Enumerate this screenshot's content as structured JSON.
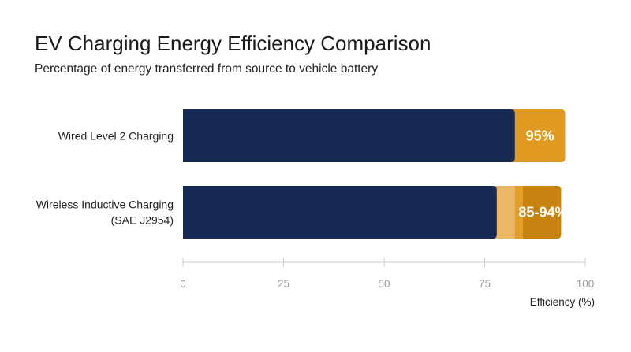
{
  "chart_data": {
    "type": "bar",
    "orientation": "horizontal",
    "title": "EV Charging Energy Efficiency Comparison",
    "subtitle": "Percentage of energy transferred from source to vehicle battery",
    "xlabel": "Efficiency (%)",
    "xlim": [
      0,
      100
    ],
    "xticks": [
      0,
      25,
      50,
      75,
      100
    ],
    "grid": false,
    "categories": [
      {
        "label_lines": [
          "Wired Level 2 Charging"
        ],
        "value": 95,
        "value_label": "95%"
      },
      {
        "label_lines": [
          "Wireless Inductive Charging",
          "(SAE J2954)"
        ],
        "range": [
          85,
          94
        ],
        "value_label": "85-94%"
      }
    ],
    "colors": {
      "base": "#162a53",
      "wired_highlight": "#e09a1f",
      "range_light": "#eab766",
      "range_mid": "#e39e2a",
      "range_dark": "#c8820f",
      "axis": "#cccccc"
    }
  }
}
